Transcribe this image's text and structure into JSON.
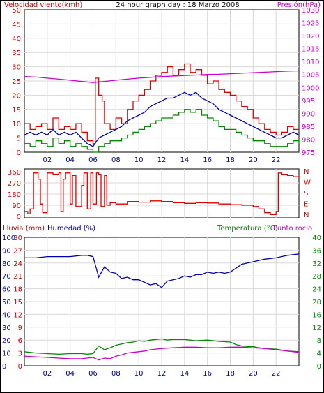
{
  "chart_data": [
    {
      "type": "line",
      "title": "24 hour graph day : 18 Marzo 2008",
      "left_axis_title": "Velocidad viento(kmh)",
      "right_axis_title": "Presión(hPa)",
      "x_ticks": [
        "02",
        "04",
        "06",
        "08",
        "10",
        "12",
        "14",
        "16",
        "18",
        "20",
        "22"
      ],
      "y_left": {
        "min": 0,
        "max": 50,
        "ticks": [
          0,
          5,
          10,
          15,
          20,
          25,
          30,
          35,
          40,
          45,
          50
        ],
        "color": "#cc0000"
      },
      "y_right": {
        "min": 975,
        "max": 1030,
        "ticks": [
          975,
          980,
          985,
          990,
          995,
          1000,
          1005,
          1010,
          1015,
          1020,
          1025,
          1030
        ],
        "color": "#cc00cc"
      },
      "x_range": [
        0,
        24
      ],
      "series": [
        {
          "key": "gust",
          "axis": "left",
          "color": "#dd0000",
          "style": "step",
          "x": [
            0,
            0.5,
            1,
            1.5,
            2,
            2.5,
            3,
            3.5,
            4,
            4.5,
            5,
            5.5,
            6,
            6.2,
            6.5,
            6.8,
            7,
            7.5,
            8,
            8.5,
            9,
            9.5,
            10,
            10.5,
            11,
            11.5,
            12,
            12.5,
            13,
            13.5,
            14,
            14.5,
            15,
            15.5,
            16,
            16.5,
            17,
            17.5,
            18,
            18.5,
            19,
            19.5,
            20,
            20.5,
            21,
            21.5,
            22,
            22.5,
            23,
            23.5,
            24
          ],
          "values": [
            10,
            8,
            9,
            10,
            8,
            12,
            8,
            9,
            8,
            10,
            7,
            4,
            3,
            26,
            20,
            18,
            10,
            8,
            12,
            10,
            15,
            18,
            20,
            22,
            25,
            27,
            28,
            30,
            27,
            29,
            31,
            28,
            29,
            27,
            24,
            25,
            22,
            21,
            20,
            18,
            16,
            15,
            12,
            10,
            8,
            7,
            6,
            7,
            9,
            8,
            8
          ]
        },
        {
          "key": "average",
          "axis": "left",
          "color": "#0000aa",
          "style": "line",
          "x": [
            0,
            0.5,
            1,
            1.5,
            2,
            2.5,
            3,
            3.5,
            4,
            4.5,
            5,
            5.5,
            6,
            6.5,
            7,
            7.5,
            8,
            8.5,
            9,
            9.5,
            10,
            10.5,
            11,
            11.5,
            12,
            12.5,
            13,
            13.5,
            14,
            14.5,
            15,
            15.5,
            16,
            16.5,
            17,
            17.5,
            18,
            18.5,
            19,
            19.5,
            20,
            20.5,
            21,
            21.5,
            22,
            22.5,
            23,
            23.5,
            24
          ],
          "values": [
            6,
            7,
            6,
            7,
            6,
            8,
            6,
            7,
            6,
            7,
            5,
            3,
            2,
            5,
            6,
            7,
            8,
            9,
            11,
            12,
            13,
            14,
            16,
            17,
            18,
            19,
            19,
            20,
            21,
            20,
            21,
            19,
            18,
            17,
            15,
            14,
            13,
            12,
            11,
            10,
            9,
            8,
            7,
            6,
            5,
            5,
            6,
            7,
            6
          ]
        },
        {
          "key": "wind_low",
          "axis": "left",
          "color": "#008800",
          "style": "step",
          "x": [
            0,
            0.5,
            1,
            1.5,
            2,
            2.5,
            3,
            3.5,
            4,
            4.5,
            5,
            5.5,
            6,
            6.5,
            7,
            7.5,
            8,
            8.5,
            9,
            9.5,
            10,
            10.5,
            11,
            11.5,
            12,
            12.5,
            13,
            13.5,
            14,
            14.5,
            15,
            15.5,
            16,
            16.5,
            17,
            17.5,
            18,
            18.5,
            19,
            19.5,
            20,
            20.5,
            21,
            21.5,
            22,
            22.5,
            23,
            23.5,
            24
          ],
          "values": [
            3,
            2,
            4,
            3,
            2,
            5,
            3,
            4,
            2,
            3,
            2,
            1,
            0,
            2,
            3,
            4,
            4,
            5,
            6,
            7,
            8,
            9,
            10,
            11,
            12,
            12,
            13,
            14,
            15,
            14,
            15,
            13,
            12,
            11,
            9,
            8,
            8,
            7,
            6,
            5,
            4,
            4,
            3,
            2,
            2,
            2,
            3,
            4,
            3
          ]
        },
        {
          "key": "pressure",
          "axis": "right",
          "color": "#cc00cc",
          "style": "line",
          "x": [
            0,
            1,
            2,
            3,
            4,
            5,
            6,
            7,
            8,
            9,
            10,
            11,
            12,
            13,
            14,
            15,
            16,
            17,
            18,
            19,
            20,
            21,
            22,
            23,
            24
          ],
          "values": [
            1004.2,
            1004,
            1003.6,
            1003.2,
            1002.8,
            1002.3,
            1001.9,
            1002.3,
            1002.8,
            1003.2,
            1003.6,
            1003.9,
            1004.2,
            1004.4,
            1004.6,
            1004.8,
            1005,
            1005.1,
            1005.3,
            1005.5,
            1005.7,
            1005.9,
            1006.1,
            1006.3,
            1006.4
          ]
        }
      ]
    },
    {
      "type": "line",
      "y_range": [
        0,
        360
      ],
      "y_ticks": [
        0,
        90,
        180,
        270,
        360
      ],
      "right_labels": [
        "N",
        "W",
        "S",
        "E",
        "N"
      ],
      "color": "#dd0000",
      "series": [
        {
          "key": "direction",
          "color": "#dd0000",
          "x": [
            0,
            0.3,
            0.5,
            0.8,
            1,
            1.2,
            1.4,
            1.6,
            2,
            2.2,
            2.5,
            3,
            3.2,
            3.4,
            3.6,
            4,
            4.2,
            4.5,
            5,
            5.2,
            5.5,
            5.8,
            6,
            6.3,
            6.5,
            6.7,
            7,
            7.2,
            7.5,
            8,
            9,
            10,
            11,
            12,
            13,
            14,
            15,
            16,
            17,
            18,
            19,
            20,
            20.5,
            21,
            21.5,
            22,
            22.2,
            22.5,
            23,
            23.5,
            24
          ],
          "values": [
            40,
            20,
            60,
            350,
            350,
            300,
            100,
            30,
            350,
            350,
            340,
            350,
            40,
            300,
            350,
            100,
            330,
            80,
            250,
            350,
            60,
            350,
            100,
            350,
            340,
            80,
            330,
            90,
            110,
            100,
            120,
            115,
            125,
            120,
            110,
            105,
            110,
            108,
            100,
            95,
            90,
            80,
            60,
            30,
            15,
            40,
            350,
            340,
            330,
            320,
            335
          ]
        }
      ]
    },
    {
      "type": "line",
      "left_axis_titles": [
        "Lluvia (mm)",
        "Humedad (%)"
      ],
      "right_axis_titles": [
        "Temperatura (°C)",
        "Punto rocío"
      ],
      "x_ticks": [
        "02",
        "04",
        "06",
        "08",
        "10",
        "12",
        "14",
        "16",
        "18",
        "20",
        "22"
      ],
      "y_humidity": {
        "min": 0,
        "max": 100,
        "ticks": [
          0,
          10,
          20,
          30,
          40,
          50,
          60,
          70,
          80,
          90,
          100
        ],
        "color": "#0000aa"
      },
      "y_rain": {
        "min": 0,
        "max": 30,
        "ticks": [
          0,
          3,
          6,
          9,
          12,
          15,
          18,
          21,
          24,
          27,
          30
        ],
        "color": "#cc0000"
      },
      "y_temp": {
        "min": 0,
        "max": 40,
        "ticks": [
          0,
          4,
          8,
          12,
          16,
          20,
          24,
          28,
          32,
          36,
          40
        ],
        "color": "#008800"
      },
      "series": [
        {
          "key": "humidity",
          "axis": "humidity",
          "color": "#0000aa",
          "x": [
            0,
            1,
            2,
            3,
            4,
            5,
            5.5,
            6,
            6.5,
            7,
            7.5,
            8,
            8.5,
            9,
            9.5,
            10,
            10.5,
            11,
            11.5,
            12,
            12.5,
            13,
            13.5,
            14,
            14.5,
            15,
            15.5,
            16,
            16.5,
            17,
            17.5,
            18,
            18.5,
            19,
            19.5,
            20,
            20.5,
            21,
            22,
            23,
            24
          ],
          "values": [
            84,
            84,
            85,
            85,
            85,
            86,
            86,
            85,
            69,
            77,
            73,
            72,
            68,
            69,
            67,
            67,
            65,
            63,
            64,
            61,
            66,
            67,
            68,
            70,
            69,
            71,
            71,
            73,
            72,
            73,
            72,
            73,
            76,
            79,
            80,
            81,
            82,
            83,
            84,
            86,
            87
          ]
        },
        {
          "key": "temperature",
          "axis": "temp",
          "color": "#008800",
          "x": [
            0,
            1,
            2,
            3,
            4,
            5,
            5.5,
            6,
            6.5,
            7,
            7.5,
            8,
            8.5,
            9,
            9.5,
            10,
            10.5,
            11,
            11.5,
            12,
            12.5,
            13,
            14,
            15,
            16,
            17,
            18,
            18.5,
            19,
            19.5,
            20,
            20.5,
            21,
            22,
            23,
            24
          ],
          "values": [
            4.4,
            4,
            3.8,
            3.6,
            3.8,
            3.8,
            3.6,
            3.8,
            6.2,
            5,
            5.6,
            6.4,
            6.8,
            7.2,
            7.4,
            7.8,
            7.6,
            8,
            8.2,
            8.4,
            8,
            8.2,
            8.2,
            7.8,
            8,
            7.6,
            7.4,
            6.6,
            6.2,
            6,
            6,
            5.6,
            5.4,
            5.2,
            4.6,
            4.4
          ]
        },
        {
          "key": "dewpoint",
          "axis": "temp",
          "color": "#cc00cc",
          "x": [
            0,
            1,
            2,
            3,
            4,
            5,
            6,
            6.5,
            7,
            7.5,
            8,
            8.5,
            9,
            9.5,
            10,
            10.5,
            11,
            11.5,
            12,
            13,
            14,
            15,
            16,
            17,
            18,
            19,
            20,
            21,
            22,
            23,
            24
          ],
          "values": [
            3,
            2.8,
            2.6,
            2.4,
            2.2,
            2.2,
            2.6,
            1.8,
            2.4,
            2.2,
            3,
            3.4,
            4,
            4.2,
            4.4,
            4.6,
            5,
            5.2,
            5.4,
            5.6,
            5.8,
            5.8,
            5.6,
            5.6,
            5.8,
            5.8,
            5.6,
            5.4,
            5,
            4.6,
            4.2
          ]
        },
        {
          "key": "rain",
          "axis": "rain",
          "color": "#cc0000",
          "x": [
            0,
            24
          ],
          "values": [
            0,
            0
          ]
        }
      ]
    }
  ]
}
